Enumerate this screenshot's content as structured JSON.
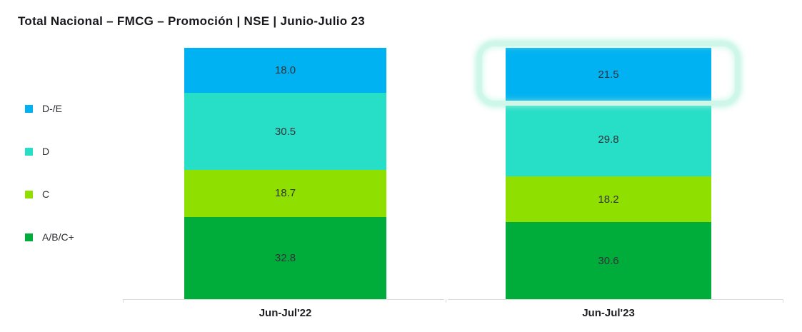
{
  "title": "Total Nacional – FMCG – Promoción | NSE | Junio-Julio 23",
  "colors": {
    "blue": "#00B2F1",
    "teal": "#27DEC7",
    "lime": "#8FE000",
    "green": "#00AD3B",
    "highlight_ring": "#CFF7E9",
    "axis_line": "#DCDCDC"
  },
  "legend": [
    {
      "label": "D-/E",
      "color": "#00B2F1"
    },
    {
      "label": "D",
      "color": "#27DEC7"
    },
    {
      "label": "C",
      "color": "#8FE000"
    },
    {
      "label": "A/B/C+",
      "color": "#00AD3B"
    }
  ],
  "chart_data": {
    "type": "bar",
    "stacked": true,
    "stack_order": "top-to-bottom",
    "title": "Total Nacional – FMCG – Promoción | NSE | Junio-Julio 23",
    "categories": [
      "Jun-Jul'22",
      "Jun-Jul'23"
    ],
    "series": [
      {
        "name": "D-/E",
        "color": "#00B2F1",
        "values": [
          18.0,
          21.5
        ]
      },
      {
        "name": "D",
        "color": "#27DEC7",
        "values": [
          30.5,
          29.8
        ]
      },
      {
        "name": "C",
        "color": "#8FE000",
        "values": [
          18.7,
          18.2
        ]
      },
      {
        "name": "A/B/C+",
        "color": "#00AD3B",
        "values": [
          32.8,
          30.6
        ]
      }
    ],
    "value_label_decimals": 1,
    "ylim": [
      0,
      100
    ],
    "grid": false,
    "legend_position": "left",
    "highlight": {
      "category": "Jun-Jul'23",
      "series": "D-/E",
      "color": "#CFF7E9"
    }
  }
}
